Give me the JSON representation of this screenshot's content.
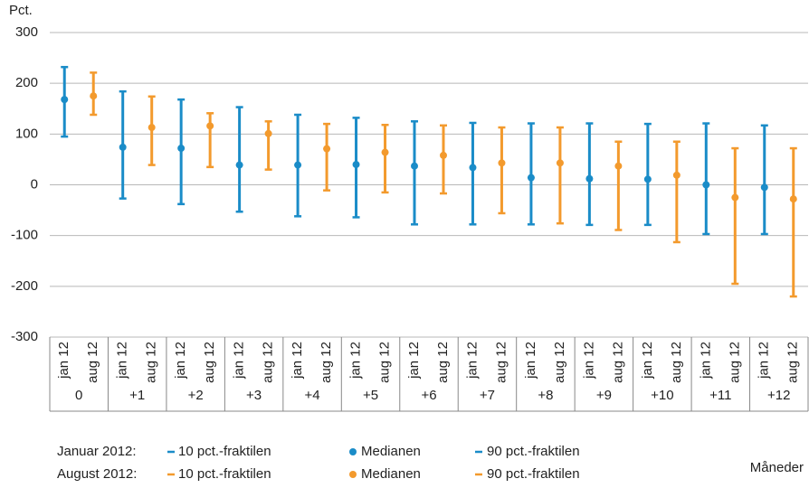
{
  "chart_data": {
    "type": "errorbar",
    "y_label": "Pct.",
    "x_label": "Måneder",
    "ylim": [
      -300,
      300
    ],
    "yticks": [
      -300,
      -200,
      -100,
      0,
      100,
      200,
      300
    ],
    "grid": true,
    "groups": [
      "0",
      "+1",
      "+2",
      "+3",
      "+4",
      "+5",
      "+6",
      "+7",
      "+8",
      "+9",
      "+10",
      "+11",
      "+12"
    ],
    "subcategories": [
      "jan 12",
      "aug 12"
    ],
    "series": [
      {
        "name": "Januar 2012:",
        "color": "#1a8cc8",
        "legend_labels": [
          "10 pct.-fraktilen",
          "Medianen",
          "90 pct.-fraktilen"
        ],
        "p10": [
          95,
          -27,
          -38,
          -53,
          -62,
          -64,
          -78,
          -78,
          -78,
          -79,
          -79,
          -97,
          -97
        ],
        "median": [
          168,
          74,
          72,
          39,
          39,
          40,
          37,
          34,
          14,
          12,
          11,
          0,
          -5
        ],
        "p90": [
          232,
          184,
          168,
          153,
          138,
          132,
          125,
          122,
          121,
          121,
          120,
          121,
          117
        ]
      },
      {
        "name": "August 2012:",
        "color": "#f39a2d",
        "legend_labels": [
          "10 pct.-fraktilen",
          "Medianen",
          "90 pct.-fraktilen"
        ],
        "p10": [
          138,
          39,
          35,
          30,
          -11,
          -15,
          -17,
          -56,
          -76,
          -89,
          -113,
          -195,
          -220
        ],
        "median": [
          175,
          113,
          116,
          101,
          71,
          64,
          58,
          43,
          43,
          37,
          19,
          -25,
          -28
        ],
        "p90": [
          221,
          174,
          141,
          125,
          120,
          118,
          117,
          113,
          113,
          85,
          85,
          72,
          72
        ]
      }
    ]
  }
}
